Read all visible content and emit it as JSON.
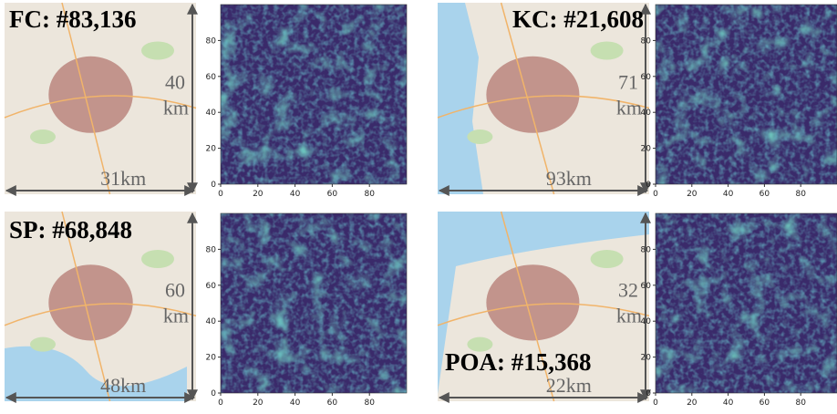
{
  "panels": [
    {
      "label": "FC: #83,136",
      "width_label": "31km",
      "height_value": "40",
      "height_unit": "km"
    },
    {
      "label": "KC: #21,608",
      "width_label": "93km",
      "height_value": "71",
      "height_unit": "km"
    },
    {
      "label": "SP: #68,848",
      "width_label": "48km",
      "height_value": "60",
      "height_unit": "km"
    },
    {
      "label": "POA: #15,368",
      "width_label": "22km",
      "height_value": "32",
      "height_unit": "km"
    }
  ],
  "heatmap_axis": {
    "xticks": [
      0,
      20,
      40,
      60,
      80
    ],
    "yticks": [
      0,
      20,
      40,
      60,
      80
    ]
  }
}
